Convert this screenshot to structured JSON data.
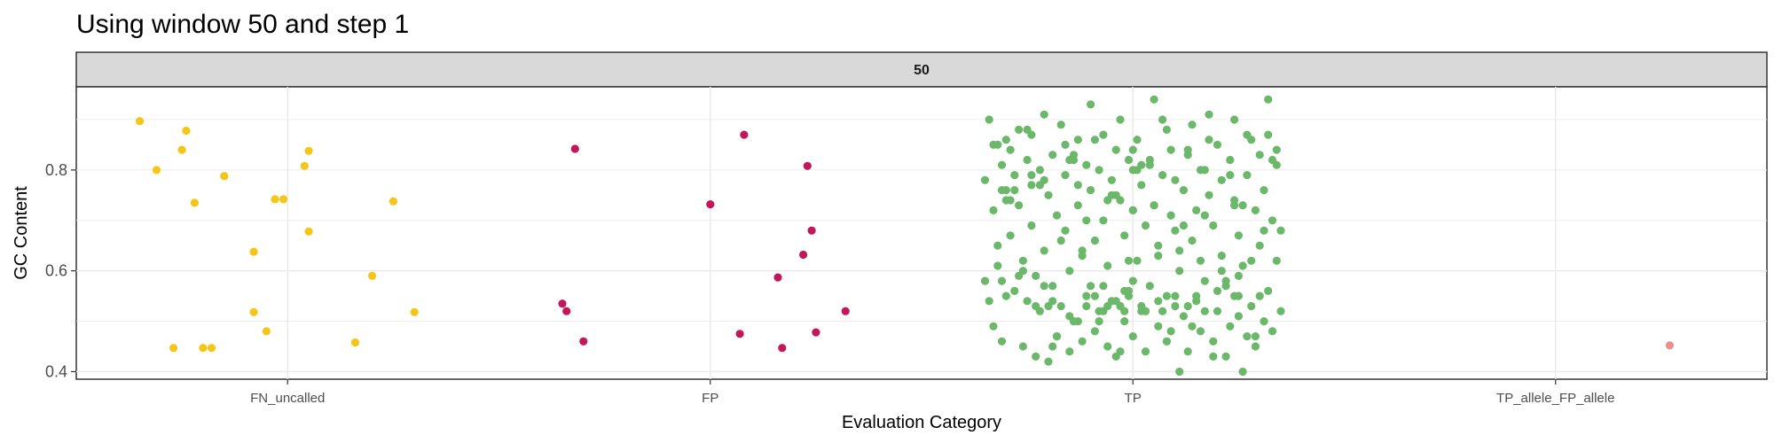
{
  "chart_data": {
    "type": "scatter",
    "title": "Using window 50 and step 1",
    "facet_label": "50",
    "xlabel": "Evaluation Category",
    "ylabel": "GC Content",
    "categories": [
      "FN_uncalled",
      "FP",
      "TP",
      "TP_allele_FP_allele"
    ],
    "ylim": [
      0.385,
      0.965
    ],
    "yticks": [
      0.4,
      0.6,
      0.8
    ],
    "yticklabels": [
      "0.4",
      "0.6",
      "0.8"
    ],
    "grid": true,
    "legend": "none",
    "colors": {
      "FN_uncalled": "#f5c518",
      "FP": "#c2185b",
      "TP": "#6bb86b",
      "TP_allele_FP_allele": "#e88f8f"
    },
    "series": [
      {
        "category": "FN_uncalled",
        "jitter": [
          -0.35,
          -0.31,
          -0.27,
          -0.25,
          -0.24,
          -0.22,
          -0.2,
          -0.18,
          -0.15,
          -0.08,
          -0.08,
          -0.05,
          -0.03,
          -0.01,
          0.04,
          0.05,
          0.05,
          0.16,
          0.2,
          0.25,
          0.3
        ],
        "values": [
          0.897,
          0.8,
          0.447,
          0.84,
          0.878,
          0.735,
          0.447,
          0.447,
          0.788,
          0.518,
          0.638,
          0.48,
          0.742,
          0.742,
          0.808,
          0.838,
          0.678,
          0.458,
          0.59,
          0.738,
          0.518
        ]
      },
      {
        "category": "FP",
        "jitter": [
          -0.35,
          -0.34,
          -0.32,
          -0.3,
          0.0,
          0.07,
          0.08,
          0.16,
          0.17,
          0.22,
          0.23,
          0.24,
          0.25,
          0.32
        ],
        "values": [
          0.535,
          0.52,
          0.842,
          0.46,
          0.732,
          0.475,
          0.87,
          0.587,
          0.447,
          0.632,
          0.808,
          0.68,
          0.478,
          0.52
        ]
      },
      {
        "category": "TP",
        "jitter": [
          -0.35,
          -0.35,
          -0.34,
          -0.33,
          -0.33,
          -0.32,
          -0.32,
          -0.31,
          -0.31,
          -0.31,
          -0.3,
          -0.3,
          -0.3,
          -0.29,
          -0.29,
          -0.28,
          -0.28,
          -0.27,
          -0.27,
          -0.26,
          -0.26,
          -0.25,
          -0.25,
          -0.24,
          -0.24,
          -0.24,
          -0.23,
          -0.23,
          -0.22,
          -0.22,
          -0.21,
          -0.21,
          -0.2,
          -0.2,
          -0.19,
          -0.19,
          -0.18,
          -0.18,
          -0.17,
          -0.17,
          -0.16,
          -0.16,
          -0.15,
          -0.15,
          -0.14,
          -0.14,
          -0.13,
          -0.13,
          -0.12,
          -0.12,
          -0.11,
          -0.11,
          -0.1,
          -0.1,
          -0.09,
          -0.09,
          -0.08,
          -0.08,
          -0.07,
          -0.07,
          -0.06,
          -0.06,
          -0.05,
          -0.05,
          -0.04,
          -0.04,
          -0.03,
          -0.03,
          -0.02,
          -0.02,
          -0.01,
          -0.01,
          0.0,
          0.0,
          0.01,
          0.01,
          0.02,
          0.02,
          0.03,
          0.03,
          0.04,
          0.04,
          0.05,
          0.05,
          0.06,
          0.06,
          0.07,
          0.07,
          0.08,
          0.08,
          0.09,
          0.09,
          0.1,
          0.1,
          0.11,
          0.11,
          0.12,
          0.12,
          0.13,
          0.13,
          0.14,
          0.14,
          0.15,
          0.15,
          0.16,
          0.16,
          0.17,
          0.17,
          0.18,
          0.18,
          0.19,
          0.19,
          0.2,
          0.2,
          0.21,
          0.21,
          0.22,
          0.22,
          0.23,
          0.23,
          0.24,
          0.24,
          0.25,
          0.25,
          0.26,
          0.26,
          0.27,
          0.27,
          0.28,
          0.28,
          0.29,
          0.29,
          0.3,
          0.3,
          0.31,
          0.31,
          0.32,
          0.32,
          0.33,
          0.33,
          0.34,
          0.34,
          0.35,
          0.35,
          -0.33,
          -0.31,
          -0.29,
          -0.27,
          -0.25,
          -0.23,
          -0.21,
          -0.19,
          -0.17,
          -0.15,
          -0.13,
          -0.11,
          -0.09,
          -0.07,
          -0.05,
          -0.03,
          -0.01,
          0.01,
          0.03,
          0.05,
          0.07,
          0.09,
          0.11,
          0.13,
          0.15,
          0.17,
          0.19,
          0.21,
          0.23,
          0.25,
          0.27,
          0.29,
          0.31,
          0.33,
          -0.34,
          -0.3,
          -0.26,
          -0.22,
          -0.18,
          -0.14,
          -0.1,
          -0.06,
          -0.02,
          0.02,
          0.06,
          0.1,
          0.14,
          0.18,
          0.22,
          0.26,
          0.3,
          0.34,
          -0.32,
          -0.28,
          -0.24,
          -0.2,
          -0.16,
          -0.12,
          -0.08,
          -0.04,
          0.0,
          0.04,
          0.08,
          0.12,
          0.16,
          0.2,
          0.24,
          0.28,
          0.32,
          -0.15,
          -0.13,
          -0.11,
          -0.09,
          -0.07,
          -0.05,
          -0.03,
          -0.01,
          0.02,
          0.06,
          0.1,
          0.17,
          0.24,
          -0.06,
          -0.04,
          -0.02,
          0.03,
          0.08,
          0.13,
          -0.21,
          -0.19,
          0.0,
          0.25
        ],
        "values": [
          0.78,
          0.58,
          0.9,
          0.72,
          0.49,
          0.85,
          0.65,
          0.58,
          0.76,
          0.81,
          0.86,
          0.55,
          0.74,
          0.84,
          0.67,
          0.79,
          0.56,
          0.73,
          0.88,
          0.45,
          0.62,
          0.82,
          0.54,
          0.77,
          0.69,
          0.87,
          0.43,
          0.59,
          0.8,
          0.52,
          0.91,
          0.64,
          0.42,
          0.75,
          0.83,
          0.57,
          0.47,
          0.71,
          0.89,
          0.53,
          0.68,
          0.79,
          0.44,
          0.6,
          0.82,
          0.5,
          0.73,
          0.86,
          0.46,
          0.63,
          0.81,
          0.55,
          0.76,
          0.93,
          0.48,
          0.66,
          0.8,
          0.52,
          0.7,
          0.87,
          0.45,
          0.61,
          0.78,
          0.54,
          0.84,
          0.43,
          0.74,
          0.9,
          0.5,
          0.67,
          0.82,
          0.56,
          0.72,
          0.47,
          0.62,
          0.86,
          0.53,
          0.77,
          0.44,
          0.69,
          0.81,
          0.57,
          0.73,
          0.94,
          0.49,
          0.65,
          0.79,
          0.52,
          0.88,
          0.46,
          0.71,
          0.84,
          0.55,
          0.68,
          0.4,
          0.6,
          0.76,
          0.51,
          0.83,
          0.44,
          0.66,
          0.89,
          0.54,
          0.72,
          0.48,
          0.62,
          0.8,
          0.58,
          0.75,
          0.91,
          0.46,
          0.69,
          0.85,
          0.52,
          0.63,
          0.78,
          0.43,
          0.57,
          0.82,
          0.49,
          0.74,
          0.9,
          0.55,
          0.67,
          0.4,
          0.61,
          0.79,
          0.47,
          0.86,
          0.53,
          0.72,
          0.45,
          0.65,
          0.83,
          0.5,
          0.76,
          0.94,
          0.56,
          0.7,
          0.48,
          0.62,
          0.81,
          0.52,
          0.68,
          0.85,
          0.46,
          0.74,
          0.59,
          0.88,
          0.53,
          0.78,
          0.45,
          0.66,
          0.82,
          0.5,
          0.7,
          0.86,
          0.57,
          0.75,
          0.44,
          0.62,
          0.8,
          0.52,
          0.73,
          0.9,
          0.48,
          0.64,
          0.84,
          0.55,
          0.71,
          0.43,
          0.6,
          0.79,
          0.51,
          0.87,
          0.47,
          0.68,
          0.82,
          0.54,
          0.76,
          0.6,
          0.77,
          0.47,
          0.83,
          0.57,
          0.74,
          0.52,
          0.81,
          0.63,
          0.78,
          0.49,
          0.86,
          0.58,
          0.73,
          0.55,
          0.84,
          0.61,
          0.76,
          0.79,
          0.53,
          0.85,
          0.64,
          0.5,
          0.75,
          0.58,
          0.82,
          0.46,
          0.69,
          0.8,
          0.56,
          0.73,
          0.62,
          0.87,
          0.51,
          0.77,
          0.53,
          0.55,
          0.52,
          0.54,
          0.53,
          0.55,
          0.52,
          0.54,
          0.53,
          0.52,
          0.55,
          0.53,
          0.54,
          0.56,
          0.52,
          0.55,
          0.53,
          0.57,
          0.54,
          0.72,
          0.59,
          0.8,
          0.84
        ]
      },
      {
        "category": "TP_allele_FP_allele",
        "jitter": [
          0.27
        ],
        "values": [
          0.452
        ]
      }
    ]
  }
}
